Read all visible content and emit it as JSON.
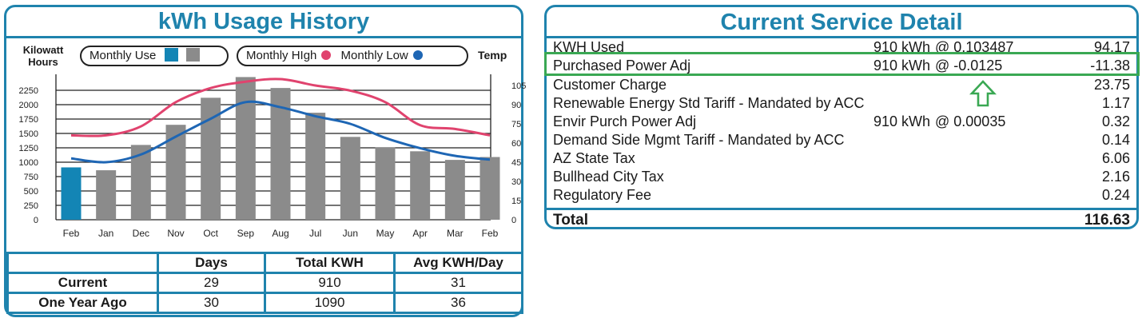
{
  "usage": {
    "title": "kWh Usage History",
    "kw_label_line1": "Kilowatt",
    "kw_label_line2": "Hours",
    "temp_label": "Temp",
    "legend": {
      "monthly_use": "Monthly Use",
      "monthly_high": "Monthly HIgh",
      "monthly_low": "Monthly Low"
    },
    "table": {
      "headers": [
        "",
        "Days",
        "Total KWH",
        "Avg KWH/Day"
      ],
      "rows": [
        [
          "Current",
          "29",
          "910",
          "31"
        ],
        [
          "One Year Ago",
          "30",
          "1090",
          "36"
        ]
      ]
    }
  },
  "chart_data": {
    "type": "bar",
    "categories": [
      "Feb",
      "Jan",
      "Dec",
      "Nov",
      "Oct",
      "Sep",
      "Aug",
      "Jul",
      "Jun",
      "May",
      "Apr",
      "Mar",
      "Feb"
    ],
    "series": [
      {
        "name": "Monthly Use",
        "axis": "left",
        "values": [
          910,
          860,
          1300,
          1650,
          2120,
          2480,
          2290,
          1860,
          1440,
          1260,
          1190,
          1040,
          1090
        ]
      },
      {
        "name": "Monthly HIgh",
        "axis": "right",
        "type": "line",
        "values": [
          66,
          66,
          73,
          92,
          103,
          108,
          110,
          105,
          101,
          92,
          74,
          71,
          66
        ]
      },
      {
        "name": "Monthly Low",
        "axis": "right",
        "type": "line",
        "values": [
          48,
          45,
          51,
          65,
          79,
          92,
          88,
          81,
          75,
          64,
          56,
          50,
          47
        ]
      }
    ],
    "ylabel": "Kilowatt Hours",
    "y2label": "Temp",
    "ylim": [
      0,
      2500
    ],
    "y2lim": [
      0,
      112.5
    ],
    "yticks": [
      0,
      250,
      500,
      750,
      1000,
      1250,
      1500,
      1750,
      2000,
      2250
    ],
    "y2ticks": [
      0,
      15,
      30,
      45,
      60,
      75,
      90,
      105
    ],
    "highlight_first_bar": true,
    "grid": true,
    "colors": {
      "current_bar": "#1385b5",
      "bar": "#8b8b8b",
      "high": "#e0436e",
      "low": "#1e66b4"
    }
  },
  "detail": {
    "title": "Current Service Detail",
    "items": [
      {
        "desc": "KWH Used",
        "kwh": "910 kWh",
        "rate": "@ 0.103487",
        "amount": "94.17"
      },
      {
        "desc": "Purchased Power Adj",
        "kwh": "910 kWh",
        "rate": "@ -0.0125",
        "amount": "-11.38"
      },
      {
        "desc": "Customer Charge",
        "kwh": "",
        "rate": "",
        "amount": "23.75"
      },
      {
        "desc": "Renewable Energy Std Tariff - Mandated by ACC",
        "kwh": "",
        "rate": "",
        "amount": "1.17"
      },
      {
        "desc": "Envir Purch Power Adj",
        "kwh": "910 kWh",
        "rate": "@ 0.00035",
        "amount": "0.32"
      },
      {
        "desc": "Demand Side Mgmt Tariff - Mandated by ACC",
        "kwh": "",
        "rate": "",
        "amount": "0.14"
      },
      {
        "desc": "AZ State Tax",
        "kwh": "",
        "rate": "",
        "amount": "6.06"
      },
      {
        "desc": "Bullhead City Tax",
        "kwh": "",
        "rate": "",
        "amount": "2.16"
      },
      {
        "desc": "Regulatory Fee",
        "kwh": "",
        "rate": "",
        "amount": "0.24"
      }
    ],
    "total_label": "Total",
    "total_amount": "116.63"
  },
  "annotations": {
    "highlight_color": "#3aa853",
    "arrow_icon": "up-arrow-icon"
  }
}
